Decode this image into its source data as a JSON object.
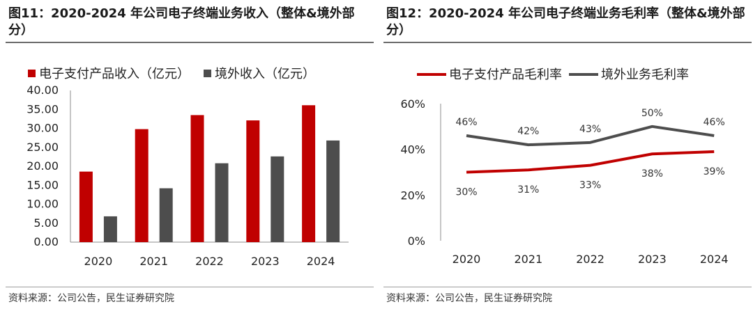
{
  "left": {
    "title": "图11：2020-2024 年公司电子终端业务收入（整体&境外部分）",
    "source": "资料来源：公司公告，民生证券研究院"
  },
  "right": {
    "title": "图12：2020-2024 年公司电子终端业务毛利率（整体&境外部分）",
    "source": "资料来源：公司公告，民生证券研究院"
  },
  "chart_data": [
    {
      "type": "bar",
      "title": "图11：2020-2024 年公司电子终端业务收入（整体&境外部分）",
      "categories": [
        "2020",
        "2021",
        "2022",
        "2023",
        "2024"
      ],
      "series": [
        {
          "name": "电子支付产品收入（亿元）",
          "color": "#c00000",
          "values": [
            18.6,
            29.8,
            33.5,
            32.1,
            36.1
          ]
        },
        {
          "name": "境外收入（亿元）",
          "color": "#4d4d4d",
          "values": [
            6.8,
            14.2,
            20.8,
            22.6,
            26.8
          ]
        }
      ],
      "ylim": [
        0,
        40
      ],
      "yticks": [
        "0.00",
        "5.00",
        "10.00",
        "15.00",
        "20.00",
        "25.00",
        "30.00",
        "35.00",
        "40.00"
      ],
      "legend_position": "top"
    },
    {
      "type": "line",
      "title": "图12：2020-2024 年公司电子终端业务毛利率（整体&境外部分）",
      "categories": [
        "2020",
        "2021",
        "2022",
        "2023",
        "2024"
      ],
      "series": [
        {
          "name": "电子支付产品毛利率",
          "color": "#c00000",
          "values": [
            30,
            31,
            33,
            38,
            39
          ],
          "labels": [
            "30%",
            "31%",
            "33%",
            "38%",
            "39%"
          ]
        },
        {
          "name": "境外业务毛利率",
          "color": "#4d4d4d",
          "values": [
            46,
            42,
            43,
            50,
            46
          ],
          "labels": [
            "46%",
            "42%",
            "43%",
            "50%",
            "46%"
          ]
        }
      ],
      "ylim": [
        0,
        60
      ],
      "yticks": [
        "0%",
        "20%",
        "40%",
        "60%"
      ],
      "legend_position": "top"
    }
  ]
}
